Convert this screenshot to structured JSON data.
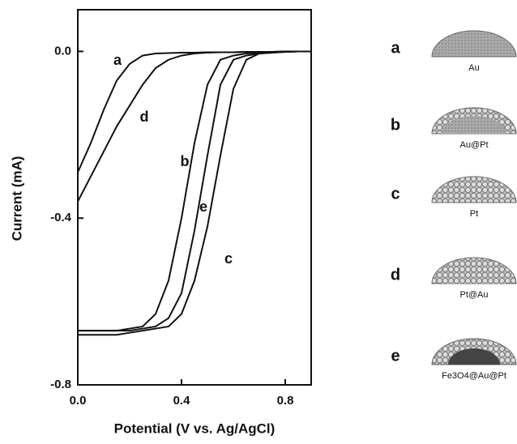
{
  "chart_data": {
    "type": "line",
    "xlabel": "Potential (V vs. Ag/AgCl)",
    "ylabel": "Current (mA)",
    "x": [
      0,
      0.05,
      0.1,
      0.15,
      0.2,
      0.25,
      0.3,
      0.35,
      0.4,
      0.45,
      0.5,
      0.55,
      0.6,
      0.65,
      0.7,
      0.75,
      0.8,
      0.85,
      0.9
    ],
    "xlim": [
      0,
      0.9
    ],
    "xticks": [
      {
        "value": 0,
        "label": "0.0"
      },
      0.4,
      0.8
    ],
    "ylim": [
      -0.8,
      0.1
    ],
    "yticks": [
      {
        "value": -0.8,
        "label": "-0.8"
      },
      -0.4,
      {
        "value": 0,
        "label": "0.0"
      }
    ],
    "series": [
      {
        "name": "a",
        "color": "#111111",
        "values": [
          -0.29,
          -0.22,
          -0.14,
          -0.07,
          -0.03,
          -0.01,
          -0.005,
          -0.004,
          -0.003,
          -0.003,
          -0.002,
          -0.002,
          -0.002,
          -0.001,
          -0.001,
          -0.001,
          0,
          0,
          0
        ]
      },
      {
        "name": "d",
        "color": "#111111",
        "values": [
          -0.36,
          -0.3,
          -0.24,
          -0.18,
          -0.13,
          -0.08,
          -0.04,
          -0.02,
          -0.01,
          -0.005,
          -0.003,
          -0.002,
          -0.002,
          -0.001,
          -0.001,
          -0.001,
          0,
          0,
          0
        ]
      },
      {
        "name": "b",
        "color": "#111111",
        "values": [
          -0.67,
          -0.67,
          -0.67,
          -0.67,
          -0.665,
          -0.66,
          -0.63,
          -0.55,
          -0.4,
          -0.22,
          -0.08,
          -0.02,
          -0.01,
          -0.005,
          -0.003,
          -0.002,
          -0.001,
          0,
          0
        ]
      },
      {
        "name": "e",
        "color": "#111111",
        "values": [
          -0.67,
          -0.67,
          -0.67,
          -0.67,
          -0.67,
          -0.665,
          -0.66,
          -0.64,
          -0.58,
          -0.43,
          -0.25,
          -0.08,
          -0.02,
          -0.01,
          -0.005,
          -0.003,
          -0.001,
          0,
          0
        ]
      },
      {
        "name": "c",
        "color": "#111111",
        "values": [
          -0.68,
          -0.68,
          -0.68,
          -0.68,
          -0.675,
          -0.67,
          -0.665,
          -0.66,
          -0.63,
          -0.55,
          -0.42,
          -0.25,
          -0.09,
          -0.02,
          -0.005,
          -0.003,
          -0.001,
          0,
          0
        ]
      }
    ]
  },
  "structures": [
    {
      "letter": "a",
      "label": "Au"
    },
    {
      "letter": "b",
      "label": "Au@Pt"
    },
    {
      "letter": "c",
      "label": "Pt"
    },
    {
      "letter": "d",
      "label": "Pt@Au"
    },
    {
      "letter": "e",
      "label": "Fe3O4@Au@Pt"
    }
  ]
}
